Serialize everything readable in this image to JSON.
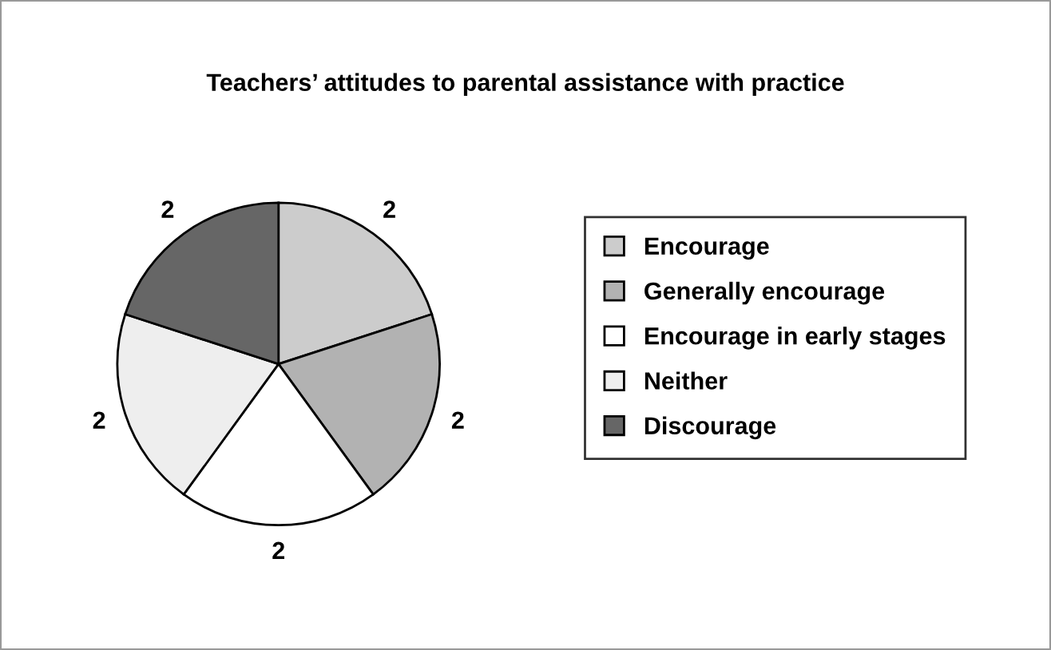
{
  "chart_data": {
    "type": "pie",
    "title": "Teachers’ attitudes to parental assistance with practice",
    "categories": [
      "Encourage",
      "Generally encourage",
      "Encourage in early stages",
      "Neither",
      "Discourage"
    ],
    "values": [
      2,
      2,
      2,
      2,
      2
    ],
    "colors": [
      "#cccccc",
      "#b2b2b2",
      "#ffffff",
      "#eeeeee",
      "#666666"
    ],
    "data_labels": true,
    "legend": "right"
  }
}
